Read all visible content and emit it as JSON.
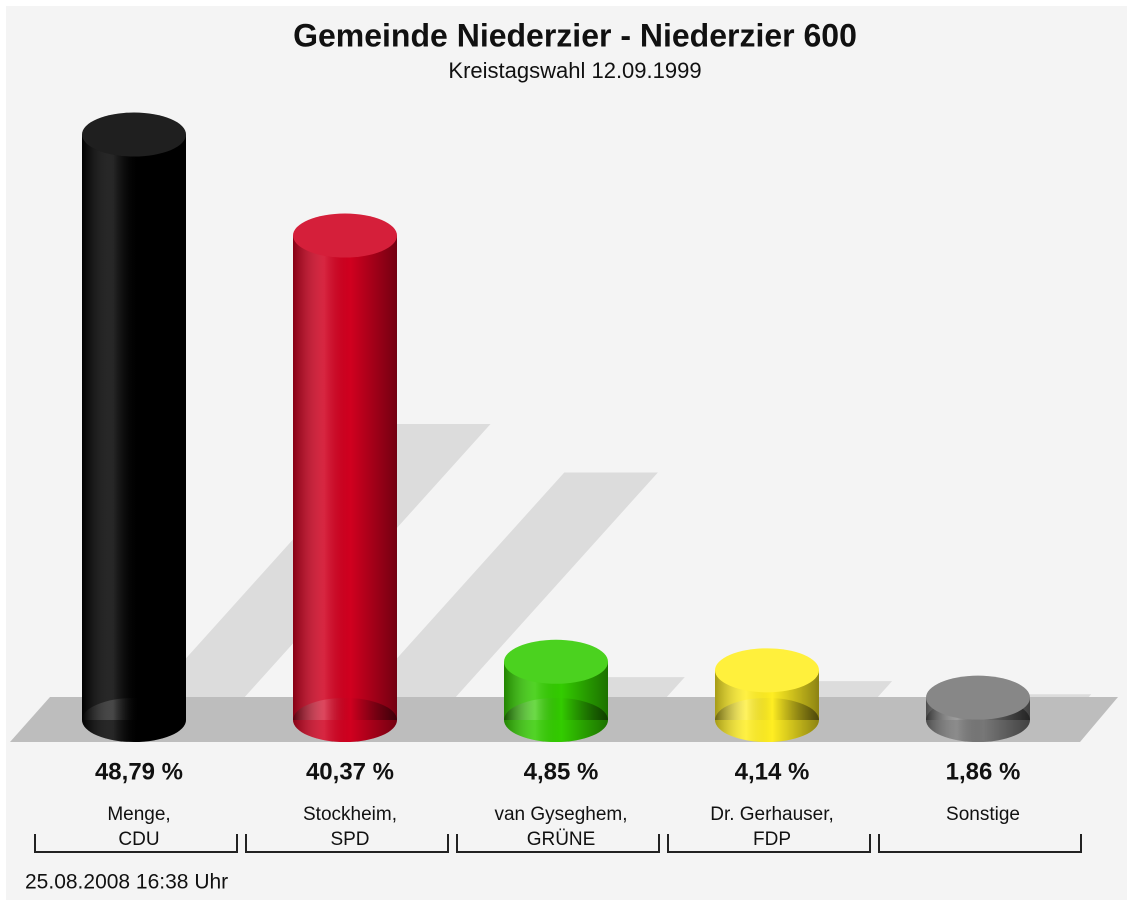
{
  "chart_data": {
    "type": "bar",
    "title": "Gemeinde Niederzier - Niederzier 600",
    "subtitle": "Kreistagswahl 12.09.1999",
    "categories": [
      [
        "Menge,",
        "CDU"
      ],
      [
        "Stockheim,",
        "SPD"
      ],
      [
        "van Gyseghem,",
        "GRÜNE"
      ],
      [
        "Dr. Gerhauser,",
        "FDP"
      ],
      [
        "Sonstige"
      ]
    ],
    "values": [
      48.79,
      40.37,
      4.85,
      4.14,
      1.86
    ],
    "value_labels": [
      "48,79 %",
      "40,37 %",
      "4,85 %",
      "4,14 %",
      "1,86 %"
    ],
    "colors": [
      "#000000",
      "#d0001f",
      "#33cc00",
      "#ffee22",
      "#777777"
    ],
    "footer": "25.08.2008 16:38 Uhr"
  }
}
